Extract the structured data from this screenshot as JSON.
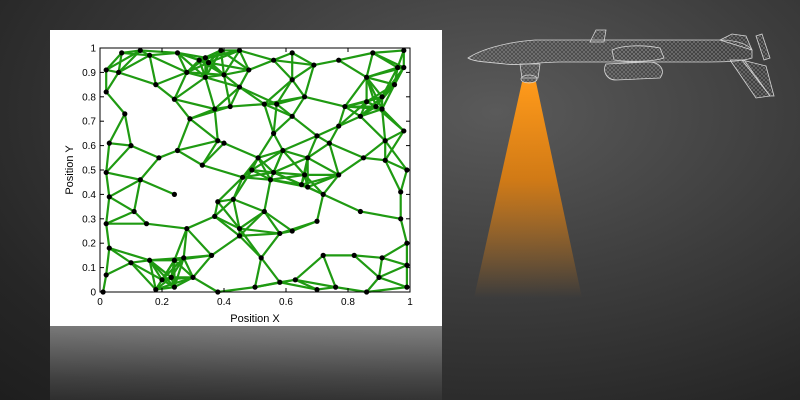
{
  "chart_data": {
    "type": "scatter",
    "title": "",
    "xlabel": "Position X",
    "ylabel": "Position Y",
    "xlim": [
      0,
      1
    ],
    "ylim": [
      0,
      1
    ],
    "xticks": [
      "0",
      "0.2",
      "0.4",
      "0.6",
      "0.8",
      "1"
    ],
    "yticks": [
      "0",
      "0.1",
      "0.2",
      "0.3",
      "0.4",
      "0.5",
      "0.6",
      "0.7",
      "0.8",
      "0.9",
      "1"
    ],
    "grid": false,
    "legend": "none",
    "series": [
      {
        "marker": "dot",
        "link_threshold": 0.14,
        "points": [
          [
            0.01,
            0.0
          ],
          [
            0.07,
            0.98
          ],
          [
            0.08,
            0.73
          ],
          [
            0.1,
            0.12
          ],
          [
            0.11,
            0.33
          ],
          [
            0.16,
            0.97
          ],
          [
            0.16,
            0.13
          ],
          [
            0.18,
            0.01
          ],
          [
            0.2,
            0.05
          ],
          [
            0.19,
            0.55
          ],
          [
            0.24,
            0.02
          ],
          [
            0.24,
            0.13
          ],
          [
            0.23,
            0.06
          ],
          [
            0.25,
            0.58
          ],
          [
            0.27,
            0.14
          ],
          [
            0.29,
            0.71
          ],
          [
            0.33,
            0.52
          ],
          [
            0.32,
            0.95
          ],
          [
            0.34,
            0.88
          ],
          [
            0.34,
            0.96
          ],
          [
            0.35,
            0.94
          ],
          [
            0.37,
            0.31
          ],
          [
            0.38,
            0.62
          ],
          [
            0.37,
            0.75
          ],
          [
            0.38,
            0.37
          ],
          [
            0.39,
            0.99
          ],
          [
            0.4,
            0.61
          ],
          [
            0.4,
            0.89
          ],
          [
            0.43,
            0.38
          ],
          [
            0.45,
            0.84
          ],
          [
            0.45,
            0.23
          ],
          [
            0.45,
            0.26
          ],
          [
            0.46,
            0.47
          ],
          [
            0.48,
            0.91
          ],
          [
            0.49,
            0.5
          ],
          [
            0.51,
            0.55
          ],
          [
            0.52,
            0.14
          ],
          [
            0.53,
            0.77
          ],
          [
            0.55,
            0.46
          ],
          [
            0.56,
            0.49
          ],
          [
            0.56,
            0.95
          ],
          [
            0.56,
            0.65
          ],
          [
            0.57,
            0.77
          ],
          [
            0.58,
            0.04
          ],
          [
            0.58,
            0.24
          ],
          [
            0.59,
            0.58
          ],
          [
            0.62,
            0.72
          ],
          [
            0.62,
            0.25
          ],
          [
            0.63,
            0.05
          ],
          [
            0.65,
            0.44
          ],
          [
            0.66,
            0.8
          ],
          [
            0.66,
            0.48
          ],
          [
            0.67,
            0.43
          ],
          [
            0.69,
            0.93
          ],
          [
            0.7,
            0.64
          ],
          [
            0.7,
            0.29
          ],
          [
            0.72,
            0.4
          ],
          [
            0.74,
            0.61
          ],
          [
            0.76,
            0.02
          ],
          [
            0.77,
            0.95
          ],
          [
            0.77,
            0.68
          ],
          [
            0.77,
            0.48
          ],
          [
            0.79,
            0.76
          ],
          [
            0.84,
            0.72
          ],
          [
            0.86,
            0.88
          ],
          [
            0.86,
            0.78
          ],
          [
            0.89,
            0.76
          ],
          [
            0.9,
            0.06
          ],
          [
            0.91,
            0.8
          ],
          [
            0.91,
            0.75
          ],
          [
            0.91,
            0.14
          ],
          [
            0.92,
            0.54
          ],
          [
            0.95,
            0.85
          ],
          [
            0.97,
            0.3
          ],
          [
            0.98,
            0.92
          ],
          [
            0.99,
            0.11
          ],
          [
            0.97,
            0.41
          ],
          [
            0.98,
            0.66
          ],
          [
            0.98,
            0.99
          ],
          [
            0.99,
            0.2
          ],
          [
            0.02,
            0.07
          ],
          [
            0.03,
            0.18
          ],
          [
            0.02,
            0.28
          ],
          [
            0.03,
            0.39
          ],
          [
            0.02,
            0.49
          ],
          [
            0.03,
            0.61
          ],
          [
            0.02,
            0.82
          ],
          [
            0.02,
            0.91
          ],
          [
            0.13,
            0.99
          ],
          [
            0.25,
            0.98
          ],
          [
            0.45,
            0.99
          ],
          [
            0.62,
            0.98
          ],
          [
            0.88,
            0.98
          ],
          [
            0.99,
            0.5
          ],
          [
            0.99,
            0.02
          ],
          [
            0.38,
            0.0
          ],
          [
            0.5,
            0.02
          ],
          [
            0.7,
            0.01
          ],
          [
            0.86,
            0.0
          ],
          [
            0.96,
            0.92
          ],
          [
            0.24,
            0.4
          ],
          [
            0.13,
            0.46
          ],
          [
            0.28,
            0.26
          ],
          [
            0.18,
            0.85
          ],
          [
            0.24,
            0.79
          ],
          [
            0.28,
            0.9
          ],
          [
            0.1,
            0.6
          ],
          [
            0.36,
            0.15
          ],
          [
            0.62,
            0.87
          ],
          [
            0.84,
            0.33
          ],
          [
            0.82,
            0.15
          ],
          [
            0.72,
            0.15
          ],
          [
            0.92,
            0.62
          ],
          [
            0.67,
            0.55
          ],
          [
            0.85,
            0.55
          ],
          [
            0.53,
            0.33
          ],
          [
            0.42,
            0.76
          ],
          [
            0.15,
            0.28
          ],
          [
            0.3,
            0.06
          ],
          [
            0.06,
            0.9
          ]
        ]
      }
    ]
  },
  "colors": {
    "edge": "#1f9a12",
    "node": "#000000",
    "axes": "#000000",
    "panel": "#ffffff",
    "beam": "#e8820c"
  },
  "decoration": {
    "drone_icon": "uav-wireframe-icon"
  }
}
